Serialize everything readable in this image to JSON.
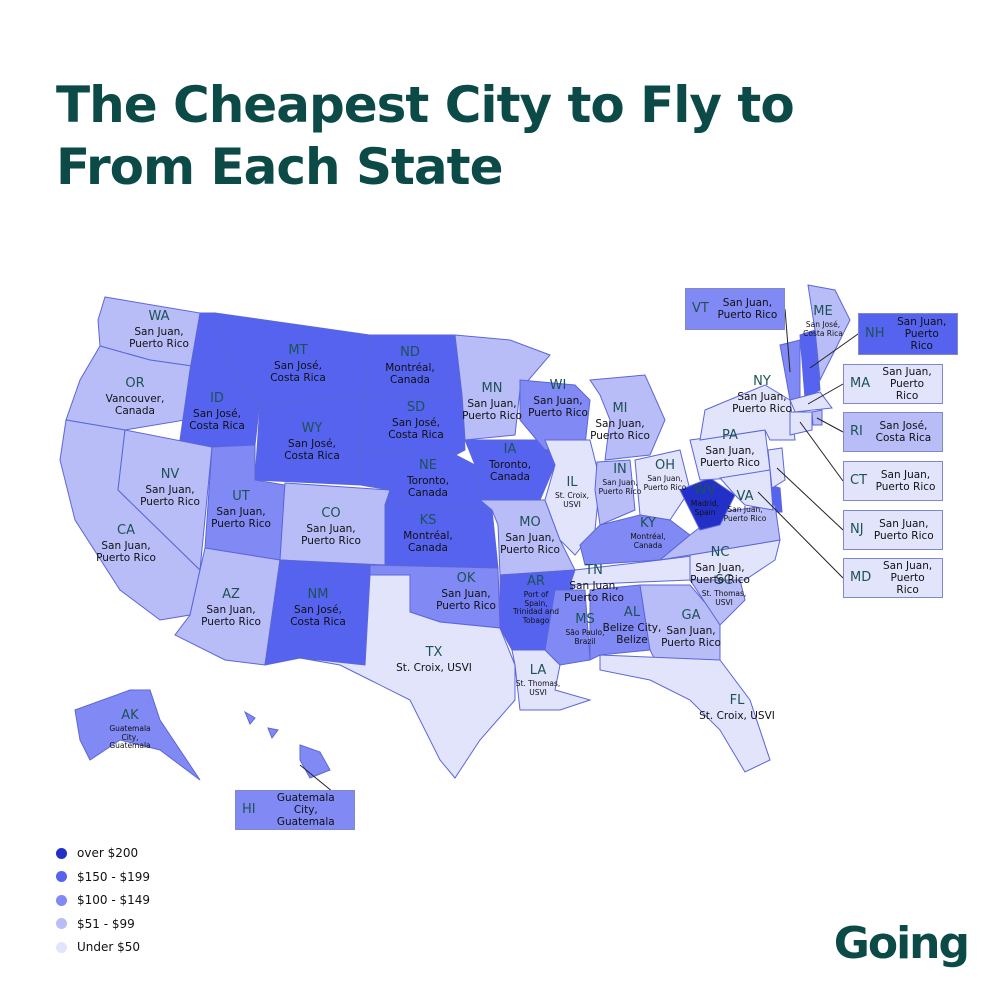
{
  "title": "The Cheapest City to Fly to From Each State",
  "legend": [
    {
      "label": "over $200",
      "color": "#2230c8"
    },
    {
      "label": "$150 - $199",
      "color": "#5563ef"
    },
    {
      "label": "$100 - $149",
      "color": "#8089f4"
    },
    {
      "label": "$51 - $99",
      "color": "#b8bdf8"
    },
    {
      "label": "Under $50",
      "color": "#e2e4fc"
    }
  ],
  "states": [
    {
      "abbr": "WA",
      "city": "San Juan, Puerto Rico",
      "color": "#b8bdf8"
    },
    {
      "abbr": "OR",
      "city": "Vancouver, Canada",
      "color": "#b8bdf8"
    },
    {
      "abbr": "CA",
      "city": "San Juan, Puerto Rico",
      "color": "#b8bdf8"
    },
    {
      "abbr": "NV",
      "city": "San Juan, Puerto Rico",
      "color": "#b8bdf8"
    },
    {
      "abbr": "ID",
      "city": "San José, Costa Rica",
      "color": "#5563ef"
    },
    {
      "abbr": "MT",
      "city": "San José, Costa Rica",
      "color": "#5563ef"
    },
    {
      "abbr": "WY",
      "city": "San José, Costa Rica",
      "color": "#5563ef"
    },
    {
      "abbr": "UT",
      "city": "San Juan, Puerto Rico",
      "color": "#8089f4"
    },
    {
      "abbr": "CO",
      "city": "San Juan, Puerto Rico",
      "color": "#b8bdf8"
    },
    {
      "abbr": "AZ",
      "city": "San Juan, Puerto Rico",
      "color": "#b8bdf8"
    },
    {
      "abbr": "NM",
      "city": "San José, Costa Rica",
      "color": "#5563ef"
    },
    {
      "abbr": "ND",
      "city": "Montréal, Canada",
      "color": "#5563ef"
    },
    {
      "abbr": "SD",
      "city": "San José, Costa Rica",
      "color": "#5563ef"
    },
    {
      "abbr": "NE",
      "city": "Toronto, Canada",
      "color": "#5563ef"
    },
    {
      "abbr": "KS",
      "city": "Montréal, Canada",
      "color": "#5563ef"
    },
    {
      "abbr": "OK",
      "city": "San Juan, Puerto Rico",
      "color": "#8089f4"
    },
    {
      "abbr": "TX",
      "city": "St. Croix, USVI",
      "color": "#e2e4fc"
    },
    {
      "abbr": "MN",
      "city": "San Juan, Puerto Rico",
      "color": "#b8bdf8"
    },
    {
      "abbr": "IA",
      "city": "Toronto, Canada",
      "color": "#5563ef"
    },
    {
      "abbr": "MO",
      "city": "San Juan, Puerto Rico",
      "color": "#b8bdf8"
    },
    {
      "abbr": "AR",
      "city": "Port of Spain, Trinidad and Tobago",
      "color": "#5563ef"
    },
    {
      "abbr": "LA",
      "city": "St. Thomas, USVI",
      "color": "#e2e4fc"
    },
    {
      "abbr": "WI",
      "city": "San Juan, Puerto Rico",
      "color": "#8089f4"
    },
    {
      "abbr": "IL",
      "city": "St. Croix, USVI",
      "color": "#e2e4fc"
    },
    {
      "abbr": "MI",
      "city": "San Juan, Puerto Rico",
      "color": "#b8bdf8"
    },
    {
      "abbr": "IN",
      "city": "San Juan, Puerto Rico",
      "color": "#b8bdf8"
    },
    {
      "abbr": "OH",
      "city": "San Juan, Puerto Rico",
      "color": "#e2e4fc"
    },
    {
      "abbr": "KY",
      "city": "Montréal, Canada",
      "color": "#8089f4"
    },
    {
      "abbr": "TN",
      "city": "San Juan, Puerto Rico",
      "color": "#e2e4fc"
    },
    {
      "abbr": "MS",
      "city": "São Paulo, Brazil",
      "color": "#8089f4"
    },
    {
      "abbr": "AL",
      "city": "Belize City, Belize",
      "color": "#8089f4"
    },
    {
      "abbr": "GA",
      "city": "San Juan, Puerto Rico",
      "color": "#b8bdf8"
    },
    {
      "abbr": "FL",
      "city": "St. Croix, USVI",
      "color": "#e2e4fc"
    },
    {
      "abbr": "SC",
      "city": "St. Thomas, USVI",
      "color": "#b8bdf8"
    },
    {
      "abbr": "NC",
      "city": "San Juan, Puerto Rico",
      "color": "#e2e4fc"
    },
    {
      "abbr": "VA",
      "city": "San Juan, Puerto Rico",
      "color": "#b8bdf8"
    },
    {
      "abbr": "WV",
      "city": "Madrid, Spain",
      "color": "#2230c8"
    },
    {
      "abbr": "PA",
      "city": "San Juan, Puerto Rico",
      "color": "#e2e4fc"
    },
    {
      "abbr": "NY",
      "city": "San Juan, Puerto Rico",
      "color": "#e2e4fc"
    },
    {
      "abbr": "ME",
      "city": "San José, Costa Rica",
      "color": "#b8bdf8"
    },
    {
      "abbr": "AK",
      "city": "Guatemala City, Guatemala",
      "color": "#8089f4"
    },
    {
      "abbr": "VT",
      "city": "San Juan, Puerto Rico",
      "color": "#8089f4"
    },
    {
      "abbr": "NH",
      "city": "San Juan, Puerto Rico",
      "color": "#5563ef"
    },
    {
      "abbr": "MA",
      "city": "San Juan, Puerto Rico",
      "color": "#e2e4fc"
    },
    {
      "abbr": "RI",
      "city": "San José, Costa Rica",
      "color": "#b8bdf8"
    },
    {
      "abbr": "CT",
      "city": "San Juan, Puerto Rico",
      "color": "#e2e4fc"
    },
    {
      "abbr": "NJ",
      "city": "San Juan, Puerto Rico",
      "color": "#e2e4fc"
    },
    {
      "abbr": "MD",
      "city": "San Juan, Puerto Rico",
      "color": "#e2e4fc"
    },
    {
      "abbr": "HI",
      "city": "Guatemala City, Guatemala",
      "color": "#8089f4"
    }
  ],
  "logo": "Going"
}
